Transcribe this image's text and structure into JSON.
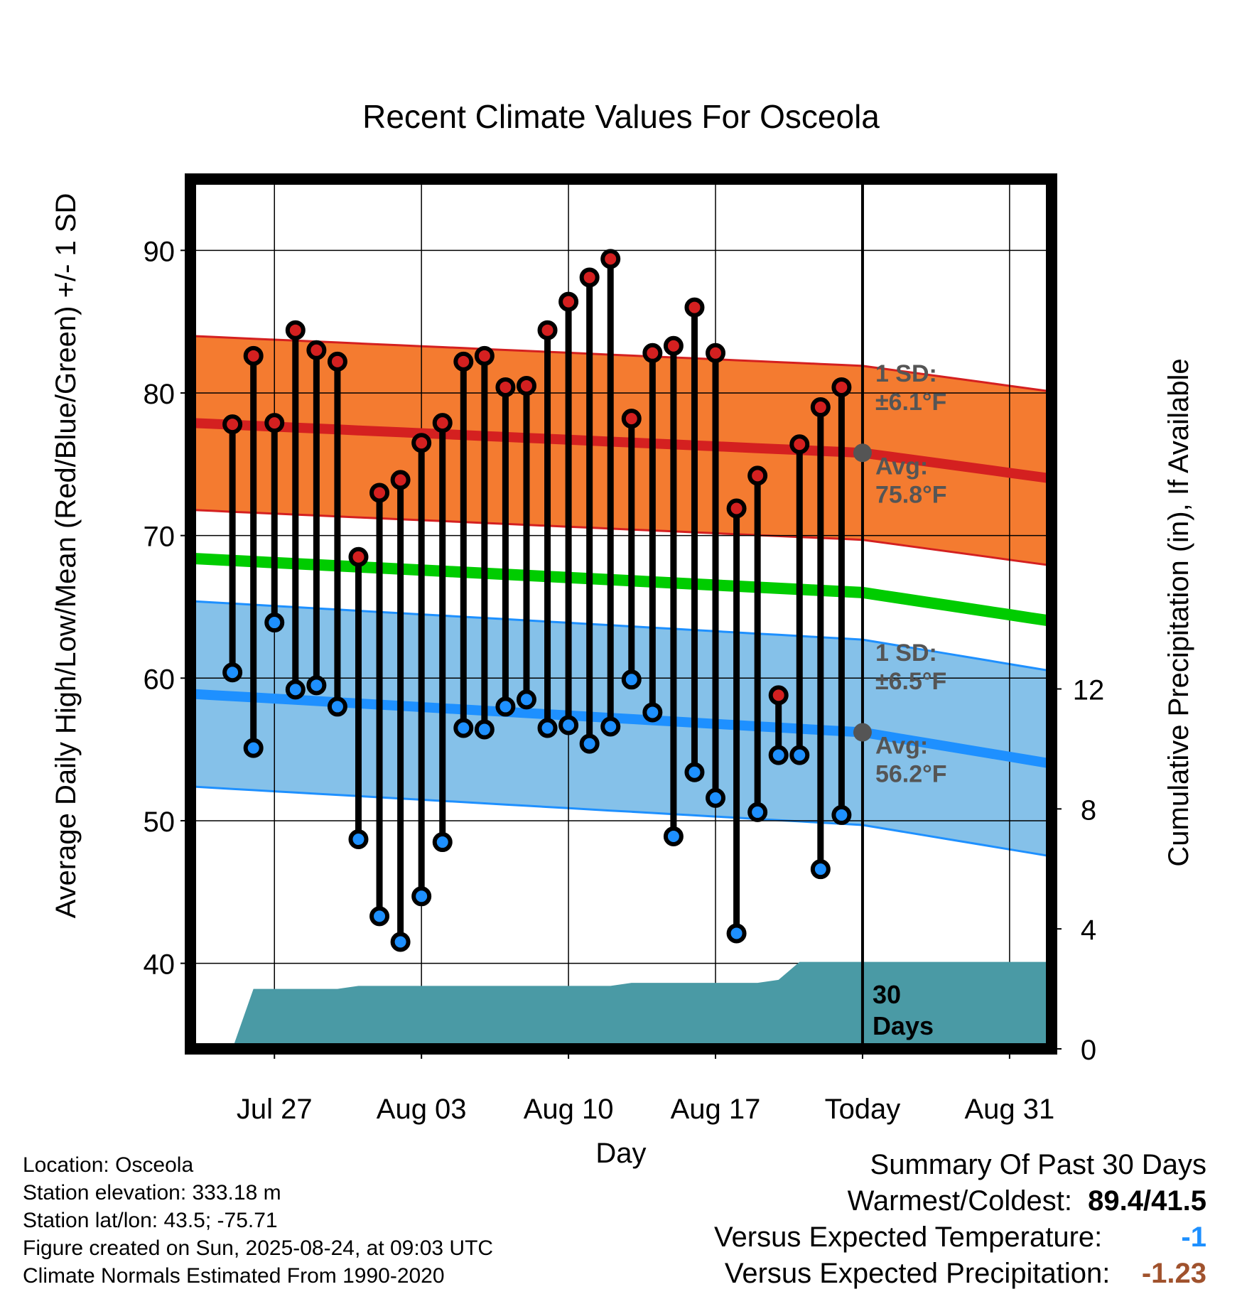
{
  "chart_data": {
    "type": "line",
    "title": "Recent Climate Values For Osceola",
    "xlabel": "Day",
    "ylabel": "Average Daily High/Low/Mean (Red/Blue/Green) +/- 1 SD",
    "y2label": "Cumulative Precipitation (in), If Available",
    "x_tick_labels": [
      "Jul 27",
      "Aug 03",
      "Aug 10",
      "Aug 17",
      "Today",
      "Aug 31"
    ],
    "x_tick_days": [
      "2025-07-27",
      "2025-08-03",
      "2025-08-10",
      "2025-08-17",
      "2025-08-24",
      "2025-08-31"
    ],
    "x_range": [
      "2025-07-23",
      "2025-09-02"
    ],
    "ylim": [
      34,
      95
    ],
    "yticks": [
      40,
      50,
      60,
      70,
      80,
      90
    ],
    "y2lim": [
      0,
      29
    ],
    "y2ticks": [
      0,
      4,
      8,
      12
    ],
    "grid": true,
    "today": "2025-08-24",
    "days": [
      "2025-07-25",
      "2025-07-26",
      "2025-07-27",
      "2025-07-28",
      "2025-07-29",
      "2025-07-30",
      "2025-07-31",
      "2025-08-01",
      "2025-08-02",
      "2025-08-03",
      "2025-08-04",
      "2025-08-05",
      "2025-08-06",
      "2025-08-07",
      "2025-08-08",
      "2025-08-09",
      "2025-08-10",
      "2025-08-11",
      "2025-08-12",
      "2025-08-13",
      "2025-08-14",
      "2025-08-15",
      "2025-08-16",
      "2025-08-17",
      "2025-08-18",
      "2025-08-19",
      "2025-08-20",
      "2025-08-21",
      "2025-08-22",
      "2025-08-23"
    ],
    "highs": [
      77.8,
      82.6,
      77.9,
      84.4,
      83.0,
      82.2,
      68.5,
      73.0,
      73.9,
      76.5,
      77.9,
      82.2,
      82.6,
      80.4,
      80.5,
      84.4,
      86.4,
      88.1,
      89.4,
      78.2,
      82.8,
      83.3,
      86.0,
      82.8,
      71.9,
      74.2,
      58.8,
      76.4,
      79.0,
      80.4
    ],
    "lows": [
      60.4,
      55.1,
      63.9,
      59.2,
      59.5,
      58.0,
      48.7,
      43.3,
      41.5,
      44.7,
      48.5,
      56.5,
      56.4,
      58.0,
      58.5,
      56.5,
      56.7,
      55.4,
      56.6,
      59.9,
      57.6,
      48.9,
      53.4,
      51.6,
      42.1,
      50.6,
      54.6,
      54.6,
      46.6,
      50.4
    ],
    "series": [
      {
        "name": "High normal",
        "color": "#d42020",
        "x": [
          "2025-07-23",
          "2025-08-24",
          "2025-09-02"
        ],
        "values": [
          77.9,
          75.8,
          74.0
        ],
        "sd": 6.1
      },
      {
        "name": "Mean normal",
        "color": "#00cc00",
        "x": [
          "2025-07-23",
          "2025-08-24",
          "2025-09-02"
        ],
        "values": [
          68.4,
          66.0,
          64.0
        ]
      },
      {
        "name": "Low normal",
        "color": "#1e90ff",
        "x": [
          "2025-07-23",
          "2025-08-24",
          "2025-09-02"
        ],
        "values": [
          58.9,
          56.2,
          54.0
        ],
        "sd": 6.5
      }
    ],
    "precip_cumulative": {
      "color": "#4a9aa5",
      "x": [
        "2025-07-25",
        "2025-07-26",
        "2025-07-30",
        "2025-07-31",
        "2025-08-12",
        "2025-08-13",
        "2025-08-19",
        "2025-08-20",
        "2025-08-21",
        "2025-09-02"
      ],
      "values": [
        0.0,
        2.0,
        2.0,
        2.1,
        2.1,
        2.2,
        2.2,
        2.3,
        2.9,
        2.9
      ]
    },
    "annotations": {
      "high_sd": [
        "1 SD:",
        "±6.1°F"
      ],
      "high_avg": [
        "Avg:",
        "75.8°F"
      ],
      "low_sd": [
        "1 SD:",
        "±6.5°F"
      ],
      "low_avg": [
        "Avg:",
        "56.2°F"
      ],
      "days_label": [
        "30",
        "Days"
      ]
    }
  },
  "footer": {
    "location": "Location: Osceola",
    "elevation": "Station elevation: 333.18 m",
    "latlon": "Station lat/lon: 43.5; -75.71",
    "created": "Figure created on Sun, 2025-08-24, at 09:03 UTC",
    "normals": "Climate Normals Estimated From 1990-2020"
  },
  "summary": {
    "heading": "Summary Of Past 30 Days",
    "warmest_label": "Warmest/Coldest:",
    "warmest_value": "89.4/41.5",
    "temp_label": "Versus Expected Temperature:",
    "temp_value": "-1",
    "temp_color": "#1e90ff",
    "precip_label": "Versus Expected Precipitation:",
    "precip_value": "-1.23",
    "precip_color": "#a0522d"
  }
}
